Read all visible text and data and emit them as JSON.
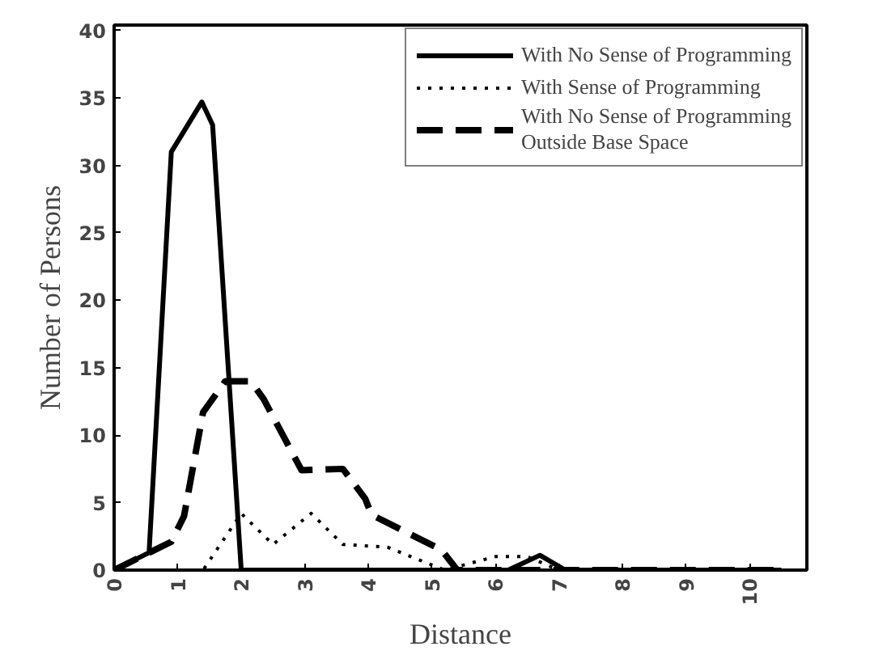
{
  "chart_data": {
    "type": "line",
    "xlabel": "Distance",
    "ylabel": "Number of Persons",
    "xlim": [
      0,
      10.9
    ],
    "ylim": [
      0,
      40.4
    ],
    "xticks": [
      0,
      1,
      2,
      3,
      4,
      5,
      6,
      7,
      8,
      9,
      10
    ],
    "yticks": [
      0,
      5,
      10,
      15,
      20,
      25,
      30,
      35,
      40
    ],
    "grid": false,
    "legend": "top right",
    "marker": "none",
    "series": [
      {
        "name": "With No Sense of Programming",
        "color": "#000000",
        "line_style": "solid",
        "x": [
          0,
          0.55,
          0.9,
          1.38,
          1.55,
          2.0,
          2.2,
          2.5,
          6.2,
          6.7,
          7.1,
          10.5
        ],
        "values": [
          0,
          1.3,
          31,
          34.7,
          33,
          0,
          0,
          0,
          0,
          1.1,
          0,
          0
        ]
      },
      {
        "name": "With Sense of Programming",
        "color": "#000000",
        "line_style": "dotted",
        "x": [
          0,
          1.4,
          2.0,
          2.5,
          3.1,
          3.6,
          4.3,
          5.2,
          6.0,
          6.5,
          7.0,
          10.5
        ],
        "values": [
          0,
          0,
          4.2,
          1.9,
          4.2,
          1.9,
          1.7,
          0,
          1,
          1,
          0,
          0
        ]
      },
      {
        "name": "With No Sense of Programming\nOutside Base Space",
        "color": "#000000",
        "line_style": "dashed",
        "x": [
          0,
          0.9,
          1.1,
          1.4,
          1.75,
          2.15,
          2.35,
          2.95,
          3.6,
          3.95,
          4.05,
          5.15,
          5.4,
          10.5
        ],
        "values": [
          0,
          2.1,
          4,
          11.7,
          14,
          14,
          12.7,
          7.4,
          7.5,
          5.3,
          4.1,
          1.5,
          0,
          0
        ]
      }
    ]
  }
}
